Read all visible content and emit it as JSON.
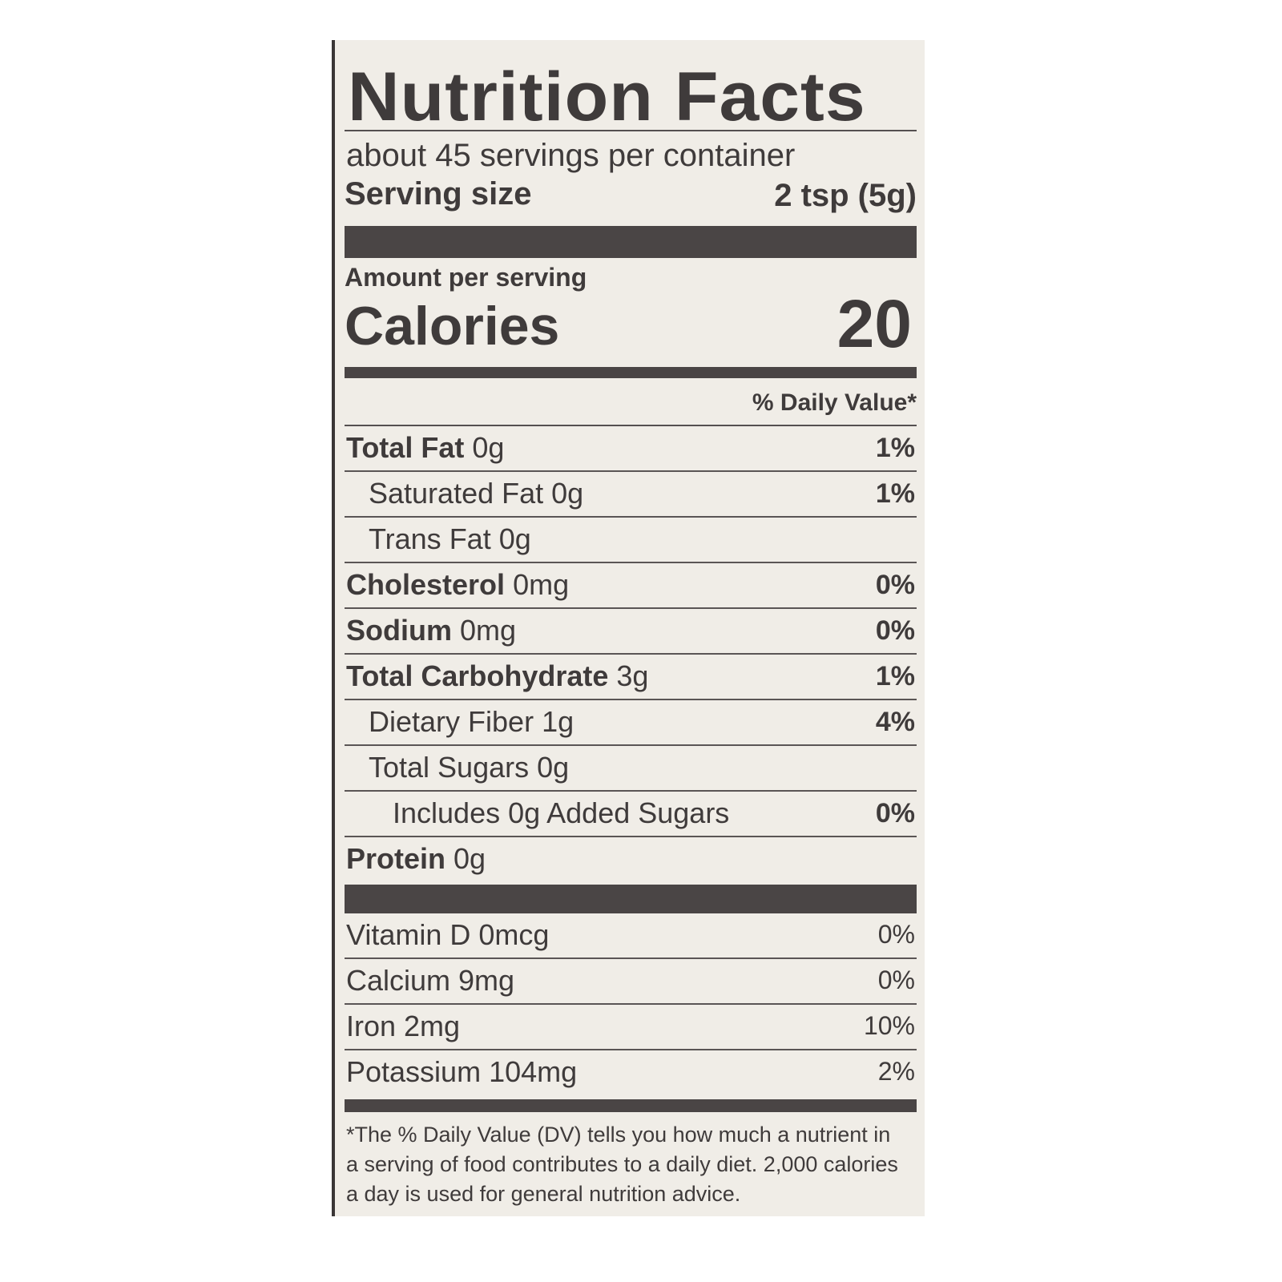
{
  "label": {
    "title": "Nutrition Facts",
    "servings_per_container": "about 45 servings per container",
    "serving_size_label": "Serving size",
    "serving_size_value": "2 tsp (5g)",
    "amount_per_serving": "Amount per serving",
    "calories_label": "Calories",
    "calories_value": "20",
    "daily_value_header": "% Daily Value*",
    "nutrients": [
      {
        "label": "Total Fat",
        "amount": "0g",
        "dv": "1%"
      },
      {
        "label": "Saturated Fat",
        "amount": "0g",
        "dv": "1%"
      },
      {
        "label": "Trans Fat",
        "amount": "0g",
        "dv": ""
      },
      {
        "label": "Cholesterol",
        "amount": "0mg",
        "dv": "0%"
      },
      {
        "label": "Sodium",
        "amount": "0mg",
        "dv": "0%"
      },
      {
        "label": "Total Carbohydrate",
        "amount": "3g",
        "dv": "1%"
      },
      {
        "label": "Dietary Fiber",
        "amount": "1g",
        "dv": "4%"
      },
      {
        "label": "Total Sugars",
        "amount": "0g",
        "dv": ""
      },
      {
        "label": "Includes 0g Added Sugars",
        "amount": "",
        "dv": "0%"
      },
      {
        "label": "Protein",
        "amount": "0g",
        "dv": ""
      }
    ],
    "vitamins": [
      {
        "label": "Vitamin D 0mcg",
        "dv": "0%"
      },
      {
        "label": "Calcium 9mg",
        "dv": "0%"
      },
      {
        "label": "Iron 2mg",
        "dv": "10%"
      },
      {
        "label": "Potassium 104mg",
        "dv": "2%"
      }
    ],
    "footnote": "*The % Daily Value (DV) tells you how much a nutrient in a serving of food contributes to a daily diet. 2,000 calories a day is used for general nutrition advice.",
    "colors": {
      "ink": "#3f3b3b",
      "paper": "#f0ede7"
    }
  }
}
